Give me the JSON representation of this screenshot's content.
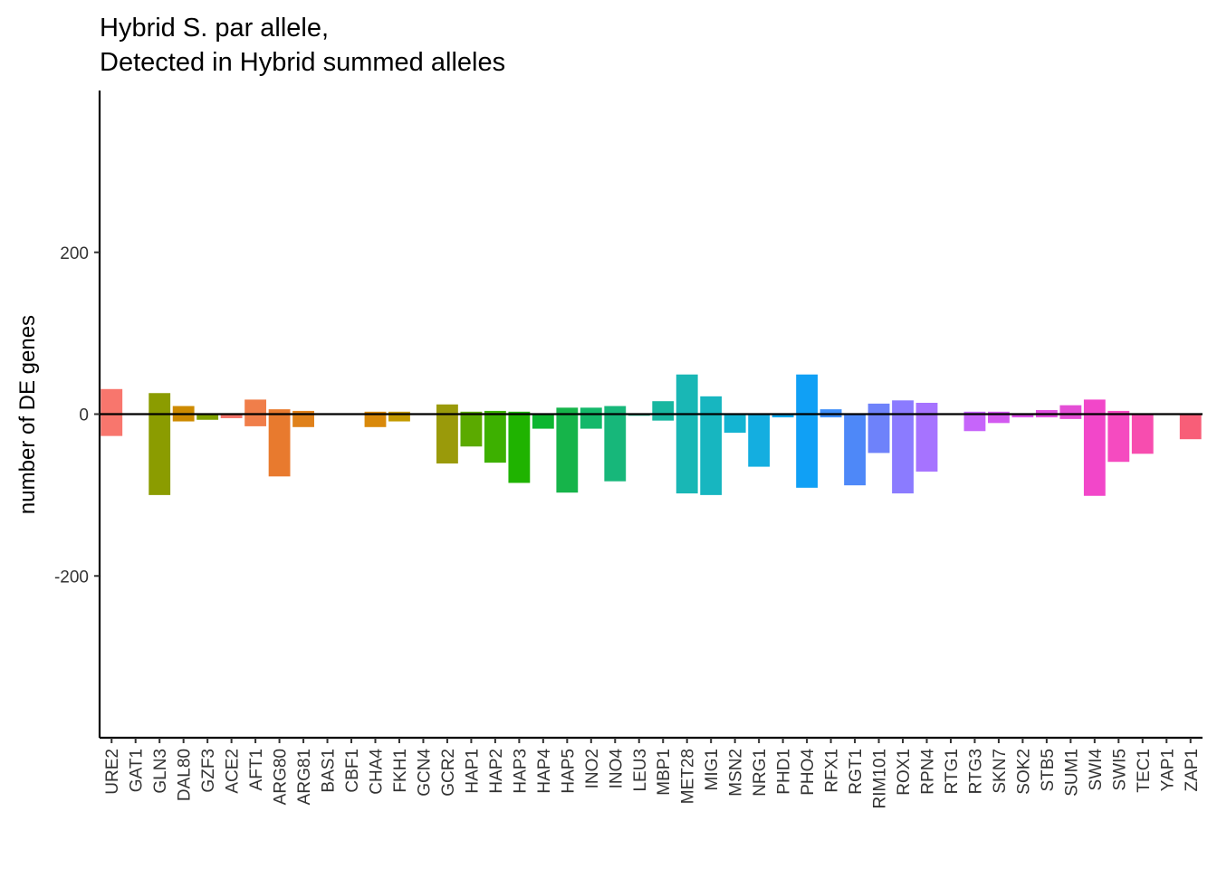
{
  "chart_data": {
    "type": "bar",
    "title_lines": [
      "Hybrid S. par allele,",
      "Detected in Hybrid summed alleles"
    ],
    "xlabel": "",
    "ylabel": "number of DE genes",
    "ylim": [
      -400,
      400
    ],
    "yticks": [
      200,
      0,
      -200
    ],
    "ytick_labels": [
      "200",
      "0",
      "-200"
    ],
    "grid": false,
    "legend": "none",
    "zero_line": true,
    "categories": [
      "URE2",
      "GAT1",
      "GLN3",
      "DAL80",
      "GZF3",
      "ACE2",
      "AFT1",
      "ARG80",
      "ARG81",
      "BAS1",
      "CBF1",
      "CHA4",
      "FKH1",
      "GCN4",
      "GCR2",
      "HAP1",
      "HAP2",
      "HAP3",
      "HAP4",
      "HAP5",
      "INO2",
      "INO4",
      "LEU3",
      "MBP1",
      "MET28",
      "MIG1",
      "MSN2",
      "NRG1",
      "PHD1",
      "PHO4",
      "RFX1",
      "RGT1",
      "RIM101",
      "ROX1",
      "RPN4",
      "RTG1",
      "RTG3",
      "SKN7",
      "SOK2",
      "STB5",
      "SUM1",
      "SWI4",
      "SWI5",
      "TEC1",
      "YAP1",
      "ZAP1"
    ],
    "colors": [
      "#F8766D",
      "#F27D53",
      "#E88526",
      "#DB8E00",
      "#CD9600",
      "#BE9C00",
      "#AEA200",
      "#9CA700",
      "#86AC00",
      "#6BB100",
      "#48B500",
      "#00B81F",
      "#00BA42",
      "#00BC5B",
      "#00BE71",
      "#00C085",
      "#00C098",
      "#00C0AA",
      "#00BFBC",
      "#00BDCC",
      "#00B9DB",
      "#00B4E8",
      "#00AEF5",
      "#00A9FF",
      "#3DA1FF",
      "#6B97FF",
      "#8D8DFF",
      "#A982FF",
      "#C077FF",
      "#D26EFA",
      "#E16AF0",
      "#EC68E2",
      "#F567D3",
      "#FB66C2",
      "#FE67B0",
      "#FF699B",
      "#FE6D86",
      "#F8766D",
      "#F27D53",
      "#E88526",
      "#DB8E00",
      "#CD9600",
      "#BE9C00",
      "#AEA200",
      "#9CA700",
      "#86AC00"
    ],
    "series": [
      {
        "values_up": [
          31,
          0,
          26,
          10,
          0,
          0,
          18,
          6,
          4,
          0,
          0,
          3,
          3,
          0,
          12,
          3,
          4,
          3,
          0,
          8,
          8,
          10,
          0,
          16,
          49,
          22,
          0,
          0,
          0,
          49,
          6,
          0,
          13,
          17,
          14,
          0,
          3,
          3,
          0,
          5,
          11,
          18,
          4,
          0,
          0,
          0
        ]
      },
      {
        "values_down": [
          -27,
          0,
          -100,
          -9,
          -7,
          -5,
          -15,
          -77,
          -16,
          0,
          0,
          -16,
          -9,
          0,
          -61,
          -40,
          -60,
          -85,
          -18,
          -97,
          -18,
          -83,
          -2,
          -8,
          -98,
          -100,
          -23,
          -65,
          -4,
          -91,
          -4,
          -88,
          -48,
          -98,
          -71,
          0,
          -21,
          -11,
          -4,
          -4,
          -6,
          -101,
          -59,
          -49,
          0,
          -31
        ]
      }
    ],
    "bar_colors": [
      "#F8766D",
      "#F27D53",
      "#8B9C00",
      "#CD8A00",
      "#7FA000",
      "#F5746A",
      "#F07E4A",
      "#E87A2E",
      "#E0811A",
      "#C99300",
      "#BD9700",
      "#D9890A",
      "#C49A00",
      "#A6A000",
      "#9A9A0A",
      "#5BAA00",
      "#3DB000",
      "#1FB300",
      "#0DB630",
      "#16B44A",
      "#14B86A",
      "#17B77A",
      "#1ABA90",
      "#18B7A0",
      "#19B7B5",
      "#17B6C0",
      "#14B4D2",
      "#14AEE0",
      "#10A8EC",
      "#10A0F5",
      "#3F8FFA",
      "#4E88F8",
      "#6E82FA",
      "#8B7BFF",
      "#A673FF",
      "#B86FFA",
      "#C665FA",
      "#D259F0",
      "#DB52E8",
      "#E151DF",
      "#E44ED5",
      "#F247C9",
      "#F54BC0",
      "#F74DAF",
      "#F9559B",
      "#F85E78"
    ]
  }
}
